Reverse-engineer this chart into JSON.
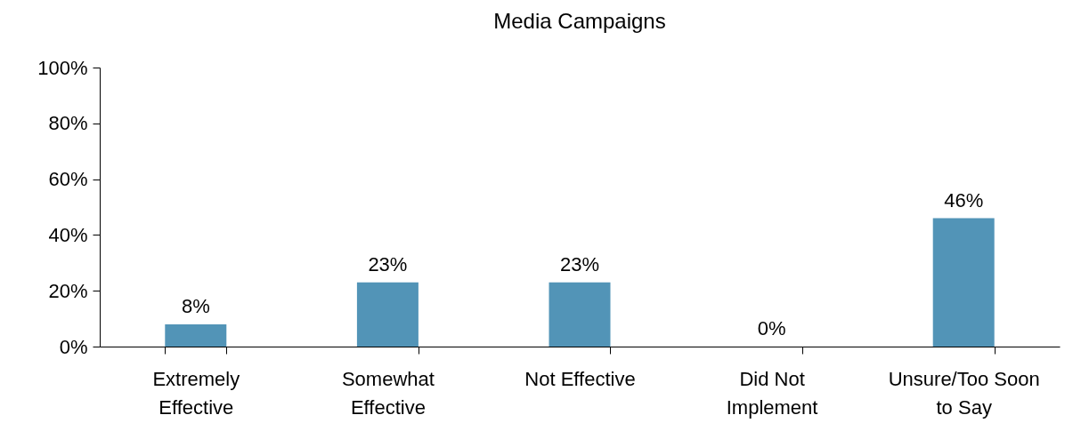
{
  "chart_data": {
    "type": "bar",
    "title": "Media Campaigns",
    "categories": [
      "Extremely Effective",
      "Somewhat Effective",
      "Not Effective",
      "Did Not Implement",
      "Unsure/Too Soon to Say"
    ],
    "values": [
      8,
      23,
      23,
      0,
      46
    ],
    "value_labels": [
      "8%",
      "23%",
      "23%",
      "0%",
      "46%"
    ],
    "color": "#5294b7",
    "ylim": [
      0,
      100
    ],
    "yticks": [
      {
        "value": 0,
        "label": "0%"
      },
      {
        "value": 20,
        "label": "20%"
      },
      {
        "value": 40,
        "label": "40%"
      },
      {
        "value": 60,
        "label": "60%"
      },
      {
        "value": 80,
        "label": "80%"
      },
      {
        "value": 100,
        "label": "100%"
      }
    ],
    "grid": false
  }
}
